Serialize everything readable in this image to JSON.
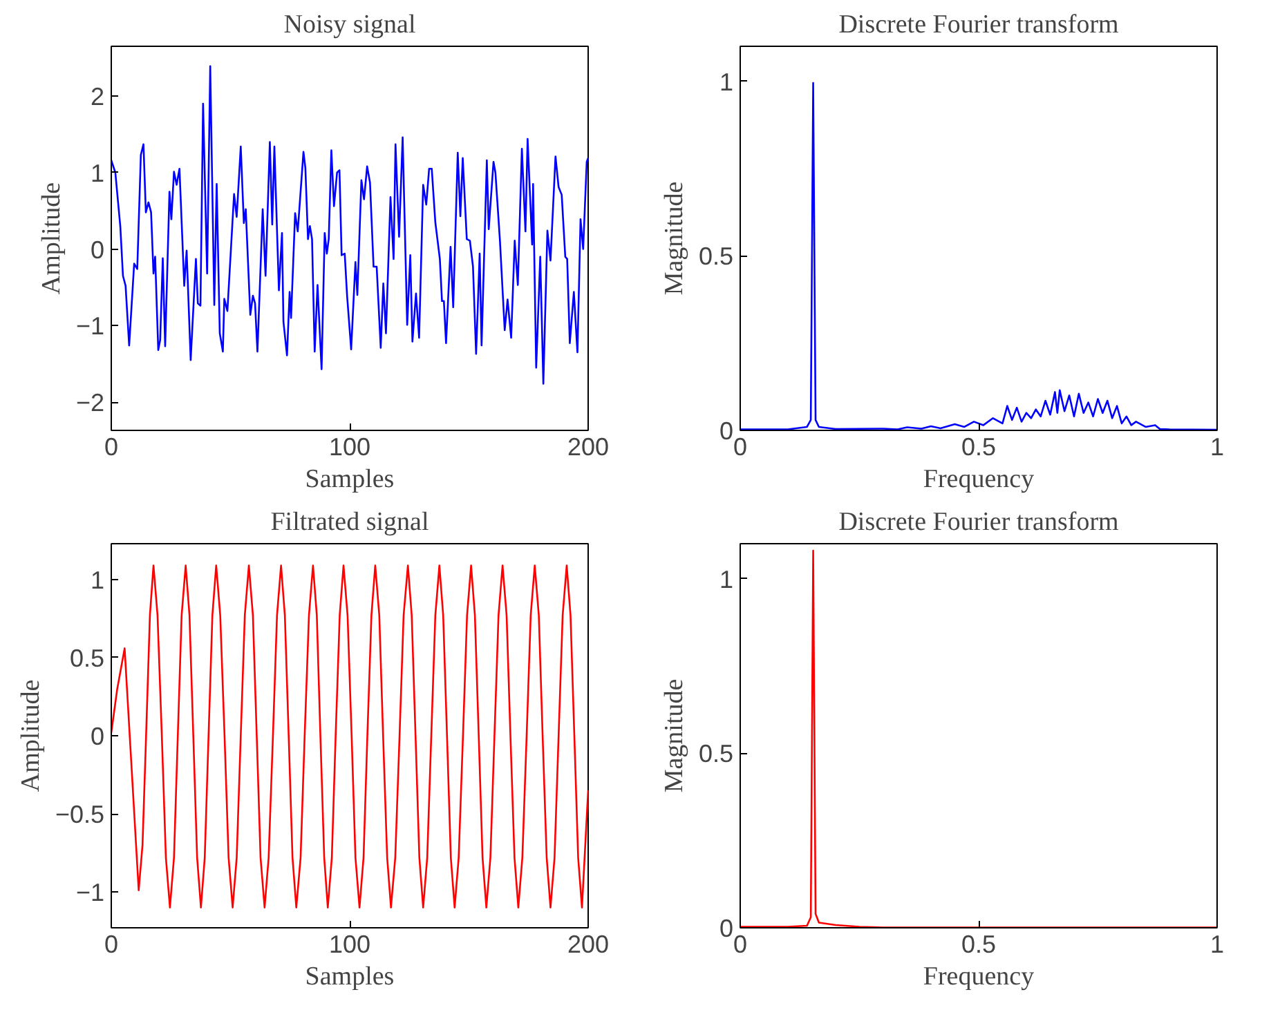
{
  "chart_data": [
    {
      "type": "line",
      "title": "Noisy signal",
      "xlabel": "Samples",
      "ylabel": "Amplitude",
      "xlim": [
        0,
        200
      ],
      "ylim": [
        -2.37,
        2.65
      ],
      "xticks": [
        0,
        100,
        200
      ],
      "yticks": [
        -2,
        -1,
        0,
        1,
        2
      ],
      "x": [
        0,
        1.7,
        3.8,
        4.9,
        6,
        7.5,
        9.6,
        10.9,
        12.4,
        13.5,
        14.5,
        15.6,
        16.7,
        17.7,
        18.4,
        19.7,
        20.5,
        21.6,
        22.6,
        24.4,
        25.2,
        26.3,
        27.4,
        28.6,
        30.6,
        31.6,
        33.3,
        35.5,
        36.3,
        37.4,
        38.5,
        40.2,
        41.5,
        43.2,
        44.2,
        45.5,
        46.8,
        47.4,
        48.7,
        51.5,
        52.6,
        54.3,
        55.6,
        56.4,
        58.3,
        59.4,
        60.3,
        61.3,
        63.5,
        64.7,
        66.5,
        67.5,
        68.4,
        70.3,
        71.6,
        72.2,
        73.7,
        74.8,
        75.4,
        77.1,
        78.2,
        80.6,
        81.4,
        82.5,
        83.3,
        84.2,
        85.3,
        86.5,
        88.2,
        89.5,
        90.4,
        91.2,
        92.3,
        93.4,
        94.7,
        95.7,
        96.6,
        97.9,
        98.9,
        100.6,
        102.4,
        103.2,
        104.9,
        106,
        107.3,
        108.5,
        110,
        111.3,
        113,
        114.1,
        115.2,
        117.1,
        118.4,
        119.2,
        120.7,
        122.2,
        124.1,
        125.4,
        126.3,
        127.8,
        129.1,
        130.8,
        132.1,
        133.3,
        134.4,
        135.9,
        137.8,
        138.7,
        139.5,
        140.4,
        142.3,
        143.4,
        145.3,
        146.4,
        147.4,
        149.1,
        150.4,
        151.7,
        153,
        154.5,
        155.3,
        157.5,
        158.3,
        160.3,
        161.1,
        163,
        165,
        166.2,
        167.7,
        169.2,
        170.5,
        172.2,
        173.7,
        174.6,
        176.5,
        176.9,
        178.2,
        179.9,
        181.2,
        182.9,
        184.2,
        186.3,
        187.6,
        188.9,
        190.4,
        191.2,
        192.3,
        194,
        195.5,
        196.8,
        197.9,
        199.4,
        200
      ],
      "series": [
        {
          "color": "#0000ff",
          "values": [
            1.16,
            1.0,
            0.29,
            -0.35,
            -0.48,
            -1.26,
            -0.19,
            -0.26,
            1.23,
            1.37,
            0.48,
            0.61,
            0.48,
            -0.32,
            -0.1,
            -1.32,
            -1.19,
            -0.12,
            -1.27,
            0.75,
            0.39,
            1.01,
            0.84,
            1.05,
            -0.48,
            -0.02,
            -1.45,
            -0.13,
            -0.71,
            -0.74,
            1.9,
            -0.32,
            2.39,
            -0.73,
            0.85,
            -1.1,
            -1.34,
            -0.65,
            -0.81,
            0.72,
            0.42,
            1.34,
            0.34,
            0.52,
            -0.86,
            -0.61,
            -0.71,
            -1.34,
            0.52,
            -0.35,
            1.4,
            0.32,
            1.34,
            -0.54,
            0.21,
            -0.95,
            -1.39,
            -0.56,
            -0.9,
            0.47,
            0.23,
            1.27,
            1.06,
            0.13,
            0.3,
            0.13,
            -1.34,
            -0.47,
            -1.57,
            0.21,
            -0.06,
            0.13,
            1.29,
            0.56,
            1.0,
            1.03,
            -0.08,
            -0.06,
            -0.61,
            -1.31,
            -0.17,
            -0.6,
            0.9,
            0.65,
            1.08,
            0.87,
            -0.23,
            -0.23,
            -1.29,
            -0.45,
            -1.1,
            0.68,
            -0.13,
            1.37,
            0.16,
            1.46,
            -0.99,
            -0.08,
            -1.21,
            -0.58,
            -1.16,
            0.84,
            0.58,
            1.05,
            1.05,
            0.35,
            -0.13,
            -0.68,
            -0.68,
            -1.23,
            0.03,
            -0.76,
            1.26,
            0.43,
            1.19,
            0.13,
            0.11,
            -0.23,
            -1.37,
            -0.06,
            -1.26,
            1.16,
            0.26,
            1.14,
            1.0,
            0.11,
            -1.06,
            -0.66,
            -1.16,
            0.11,
            -0.47,
            1.31,
            0.23,
            1.44,
            0.06,
            0.85,
            -1.55,
            -0.1,
            -1.76,
            0.24,
            -0.15,
            1.21,
            0.81,
            0.71,
            -0.1,
            -0.13,
            -1.23,
            -0.56,
            -1.35,
            0.39,
            0,
            1.14,
            1.19
          ]
        }
      ]
    },
    {
      "type": "line",
      "title": "Discrete Fourier transform",
      "xlabel": "Frequency",
      "ylabel": "Magnitude",
      "xlim": [
        0,
        1
      ],
      "ylim": [
        0,
        1.1
      ],
      "xticks": [
        0,
        0.5,
        1
      ],
      "yticks": [
        0,
        0.5,
        1
      ],
      "x": [
        0,
        0.1,
        0.14,
        0.148,
        0.153,
        0.158,
        0.165,
        0.2,
        0.3,
        0.33,
        0.35,
        0.38,
        0.4,
        0.42,
        0.45,
        0.47,
        0.49,
        0.51,
        0.53,
        0.55,
        0.56,
        0.57,
        0.58,
        0.59,
        0.6,
        0.61,
        0.62,
        0.63,
        0.64,
        0.65,
        0.66,
        0.665,
        0.67,
        0.68,
        0.69,
        0.7,
        0.71,
        0.72,
        0.73,
        0.74,
        0.75,
        0.76,
        0.77,
        0.78,
        0.79,
        0.8,
        0.81,
        0.82,
        0.83,
        0.85,
        0.87,
        0.88,
        0.9,
        1
      ],
      "series": [
        {
          "color": "#0000ff",
          "values": [
            0.003,
            0.003,
            0.01,
            0.03,
            0.995,
            0.03,
            0.01,
            0.004,
            0.005,
            0.003,
            0.009,
            0.005,
            0.012,
            0.006,
            0.018,
            0.01,
            0.025,
            0.015,
            0.035,
            0.02,
            0.07,
            0.03,
            0.065,
            0.025,
            0.05,
            0.035,
            0.06,
            0.04,
            0.085,
            0.045,
            0.11,
            0.05,
            0.115,
            0.055,
            0.1,
            0.04,
            0.105,
            0.05,
            0.08,
            0.04,
            0.09,
            0.05,
            0.085,
            0.035,
            0.07,
            0.02,
            0.04,
            0.015,
            0.025,
            0.01,
            0.015,
            0.004,
            0.003,
            0.002
          ]
        }
      ]
    },
    {
      "type": "line",
      "title": "Filtrated signal",
      "xlabel": "Samples",
      "ylabel": "Amplitude",
      "xlim": [
        0,
        200
      ],
      "ylim": [
        -1.23,
        1.23
      ],
      "xticks": [
        0,
        100,
        200
      ],
      "yticks": [
        -1,
        -0.5,
        0,
        0.5,
        1
      ],
      "x": [
        0,
        2.5,
        5.6,
        8.5,
        11.5,
        13.1,
        14.6,
        16.2,
        17.7,
        19.4,
        21.2,
        22.9,
        24.6,
        26.3,
        27.9,
        29.5,
        31.2,
        32.8,
        34.4,
        36.0,
        37.6,
        39.2,
        40.8,
        42.4,
        44.0,
        45.7,
        47.5,
        49.2,
        50.9,
        52.6,
        54.3,
        56.0,
        57.7,
        59.4,
        61.0,
        62.6,
        64.3,
        66.0,
        67.8,
        69.5,
        71.2,
        72.8,
        74.4,
        76.0,
        77.6,
        79.4,
        81.1,
        82.9,
        84.6,
        86.2,
        87.7,
        89.3,
        90.8,
        92.5,
        94.1,
        95.8,
        97.4,
        99.1,
        100.8,
        102.4,
        104.1,
        105.8,
        107.4,
        109.1,
        110.7,
        112.4,
        114.0,
        115.7,
        117.3,
        119.1,
        120.9,
        122.6,
        124.4,
        126.0,
        127.6,
        129.2,
        130.8,
        132.5,
        134.2,
        135.9,
        137.6,
        139.2,
        140.8,
        142.4,
        144.0,
        145.7,
        147.5,
        149.2,
        150.9,
        152.5,
        154.1,
        155.7,
        157.3,
        159.0,
        160.7,
        162.4,
        164.1,
        165.8,
        167.4,
        169.1,
        170.7,
        172.4,
        174.2,
        175.9,
        177.6,
        179.3,
        180.9,
        182.6,
        184.2,
        185.9,
        187.6,
        189.3,
        191.0,
        192.6,
        194.2,
        195.8,
        197.4,
        200
      ],
      "series": [
        {
          "color": "#ff0000",
          "values": [
            0.02,
            0.3,
            0.56,
            -0.2,
            -0.99,
            -0.7,
            0,
            0.77,
            1.09,
            0.77,
            0,
            -0.78,
            -1.1,
            -0.78,
            0,
            0.77,
            1.09,
            0.77,
            0,
            -0.78,
            -1.1,
            -0.78,
            0,
            0.77,
            1.09,
            0.77,
            0,
            -0.78,
            -1.1,
            -0.78,
            0,
            0.77,
            1.09,
            0.77,
            0,
            -0.78,
            -1.1,
            -0.78,
            0,
            0.77,
            1.09,
            0.77,
            0,
            -0.78,
            -1.1,
            -0.78,
            0,
            0.77,
            1.09,
            0.77,
            0,
            -0.78,
            -1.1,
            -0.78,
            0,
            0.77,
            1.09,
            0.77,
            0,
            -0.78,
            -1.1,
            -0.78,
            0,
            0.77,
            1.09,
            0.77,
            0,
            -0.78,
            -1.1,
            -0.78,
            0,
            0.77,
            1.09,
            0.77,
            0,
            -0.78,
            -1.1,
            -0.78,
            0,
            0.77,
            1.09,
            0.77,
            0,
            -0.78,
            -1.1,
            -0.78,
            0,
            0.77,
            1.09,
            0.77,
            0,
            -0.78,
            -1.1,
            -0.78,
            0,
            0.77,
            1.09,
            0.77,
            0,
            -0.78,
            -1.1,
            -0.78,
            0,
            0.77,
            1.09,
            0.77,
            0,
            -0.78,
            -1.1,
            -0.78,
            0,
            0.77,
            1.09,
            0.77,
            0,
            -0.78,
            -1.1,
            -0.35
          ]
        }
      ]
    },
    {
      "type": "line",
      "title": "Discrete Fourier transform",
      "xlabel": "Frequency",
      "ylabel": "Magnitude",
      "xlim": [
        0,
        1
      ],
      "ylim": [
        0,
        1.1
      ],
      "xticks": [
        0,
        0.5,
        1
      ],
      "yticks": [
        0,
        0.5,
        1
      ],
      "x": [
        0,
        0.1,
        0.14,
        0.148,
        0.153,
        0.158,
        0.165,
        0.2,
        0.25,
        0.3,
        1
      ],
      "series": [
        {
          "color": "#ff0000",
          "values": [
            0.003,
            0.003,
            0.006,
            0.03,
            1.08,
            0.04,
            0.015,
            0.008,
            0.003,
            0.001,
            0.001
          ]
        }
      ]
    }
  ]
}
